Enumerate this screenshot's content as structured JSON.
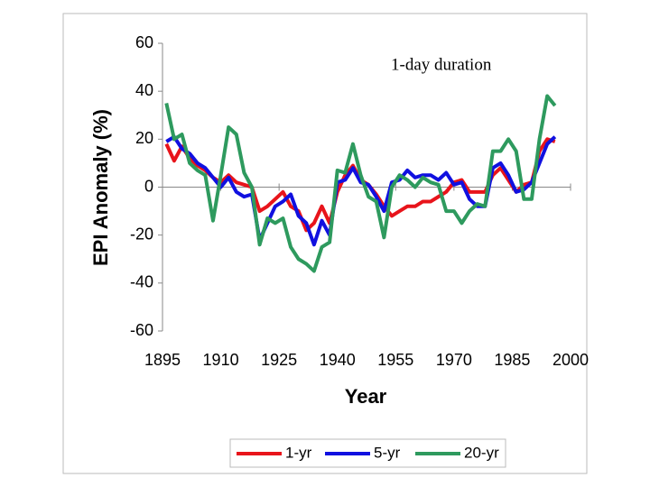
{
  "chart_data": {
    "type": "line",
    "xlabel": "Year",
    "ylabel": "EPI Anomaly (%)",
    "annotation": "1-day duration",
    "x": [
      1896,
      1898,
      1900,
      1902,
      1904,
      1906,
      1908,
      1910,
      1912,
      1914,
      1916,
      1918,
      1920,
      1922,
      1924,
      1926,
      1928,
      1930,
      1932,
      1934,
      1936,
      1938,
      1940,
      1942,
      1944,
      1946,
      1948,
      1950,
      1952,
      1954,
      1956,
      1958,
      1960,
      1962,
      1964,
      1966,
      1968,
      1970,
      1972,
      1974,
      1976,
      1978,
      1980,
      1982,
      1984,
      1986,
      1988,
      1990,
      1992,
      1994,
      1996
    ],
    "series": [
      {
        "name": "1-yr",
        "color": "#e8141b",
        "values": [
          18,
          11,
          17,
          12,
          9,
          7,
          4,
          2,
          5,
          2,
          1,
          0,
          -10,
          -8,
          -5,
          -2,
          -8,
          -10,
          -18,
          -15,
          -8,
          -15,
          -2,
          5,
          9,
          3,
          1,
          -3,
          -8,
          -12,
          -10,
          -8,
          -8,
          -6,
          -6,
          -4,
          -2,
          2,
          3,
          -2,
          -2,
          -2,
          5,
          8,
          3,
          -2,
          1,
          2,
          15,
          20,
          19
        ]
      },
      {
        "name": "5-yr",
        "color": "#1010e0",
        "values": [
          19,
          21,
          16,
          14,
          10,
          8,
          4,
          0,
          4,
          -2,
          -4,
          -3,
          -22,
          -15,
          -8,
          -6,
          -3,
          -12,
          -15,
          -24,
          -14,
          -20,
          2,
          3,
          8,
          2,
          1,
          -4,
          -10,
          2,
          3,
          7,
          4,
          5,
          5,
          3,
          6,
          1,
          2,
          -5,
          -8,
          -8,
          8,
          10,
          5,
          -2,
          -1,
          2,
          10,
          18,
          21
        ]
      },
      {
        "name": "20-yr",
        "color": "#2e9a5e",
        "values": [
          35,
          20,
          22,
          10,
          7,
          5,
          -14,
          5,
          25,
          22,
          6,
          0,
          -24,
          -13,
          -15,
          -13,
          -25,
          -30,
          -32,
          -35,
          -25,
          -23,
          7,
          6,
          18,
          5,
          -4,
          -6,
          -21,
          0,
          5,
          3,
          0,
          4,
          2,
          1,
          -10,
          -10,
          -15,
          -10,
          -7,
          -8,
          15,
          15,
          20,
          15,
          -5,
          -5,
          20,
          38,
          34
        ]
      }
    ],
    "xlim": [
      1895,
      2000
    ],
    "xticks": [
      1895,
      1910,
      1925,
      1940,
      1955,
      1970,
      1985,
      2000
    ],
    "ylim": [
      -60,
      60
    ],
    "yticks": [
      -60,
      -40,
      -20,
      0,
      20,
      40,
      60
    ],
    "grid": false,
    "legend": "bottom"
  }
}
